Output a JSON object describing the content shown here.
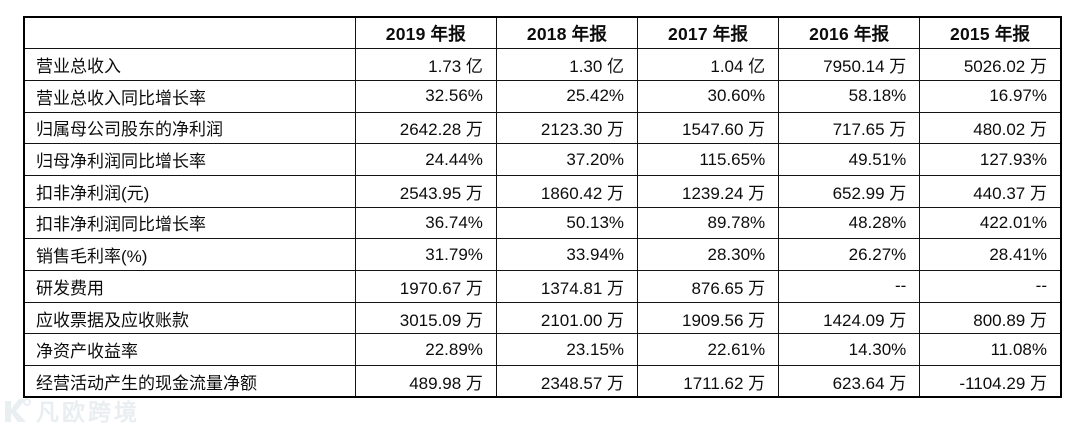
{
  "chart_data": {
    "type": "table",
    "title": "",
    "columns": [
      "",
      "2019 年报",
      "2018 年报",
      "2017 年报",
      "2016 年报",
      "2015 年报"
    ],
    "rows": [
      {
        "label": "营业总收入",
        "values": [
          "1.73 亿",
          "1.30 亿",
          "1.04 亿",
          "7950.14 万",
          "5026.02 万"
        ]
      },
      {
        "label": "营业总收入同比增长率",
        "values": [
          "32.56%",
          "25.42%",
          "30.60%",
          "58.18%",
          "16.97%"
        ]
      },
      {
        "label": "归属母公司股东的净利润",
        "values": [
          "2642.28 万",
          "2123.30 万",
          "1547.60 万",
          "717.65 万",
          "480.02 万"
        ]
      },
      {
        "label": "归母净利润同比增长率",
        "values": [
          "24.44%",
          "37.20%",
          "115.65%",
          "49.51%",
          "127.93%"
        ]
      },
      {
        "label": "扣非净利润(元)",
        "values": [
          "2543.95 万",
          "1860.42 万",
          "1239.24 万",
          "652.99 万",
          "440.37 万"
        ]
      },
      {
        "label": "扣非净利润同比增长率",
        "values": [
          "36.74%",
          "50.13%",
          "89.78%",
          "48.28%",
          "422.01%"
        ]
      },
      {
        "label": "销售毛利率(%)",
        "values": [
          "31.79%",
          "33.94%",
          "28.30%",
          "26.27%",
          "28.41%"
        ]
      },
      {
        "label": "研发费用",
        "values": [
          "1970.67 万",
          "1374.81 万",
          "876.65 万",
          "--",
          "--"
        ]
      },
      {
        "label": "应收票据及应收账款",
        "values": [
          "3015.09 万",
          "2101.00 万",
          "1909.56 万",
          "1424.09 万",
          "800.89 万"
        ]
      },
      {
        "label": "净资产收益率",
        "values": [
          "22.89%",
          "23.15%",
          "22.61%",
          "14.30%",
          "11.08%"
        ]
      },
      {
        "label": "经营活动产生的现金流量净额",
        "values": [
          "489.98 万",
          "2348.57 万",
          "1711.62 万",
          "623.64 万",
          "-1104.29 万"
        ]
      }
    ],
    "layout_hints": {
      "grid": "on",
      "header_bold": true,
      "label_align": "left",
      "value_align": "right"
    },
    "colors": {
      "border": "#000000",
      "text": "#0c0c0c",
      "background": "#ffffff",
      "watermark": "#9fb3bf"
    }
  },
  "watermark": {
    "text": "凡欧跨境"
  }
}
